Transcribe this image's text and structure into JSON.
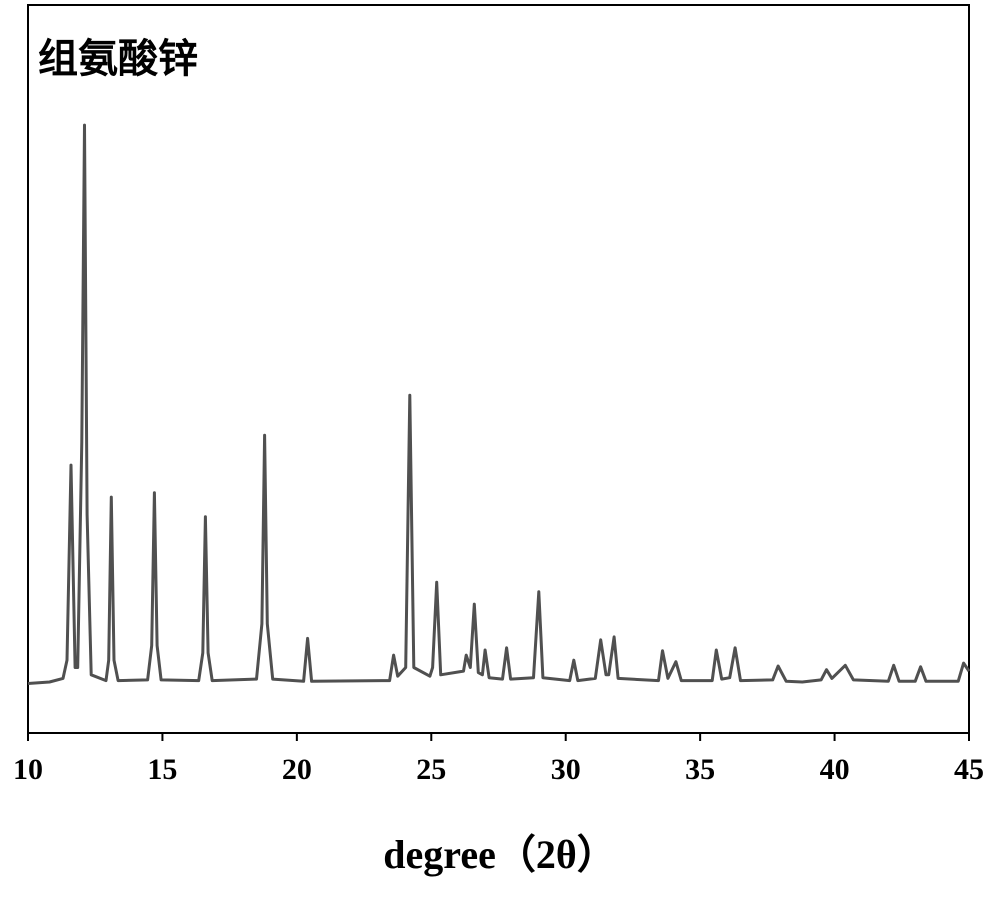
{
  "chart_data": {
    "type": "line",
    "title": "组氨酸锌",
    "xlabel": "degree（2θ）",
    "xlim": [
      10,
      45
    ],
    "xticks": [
      10,
      15,
      20,
      25,
      30,
      35,
      40,
      45
    ],
    "ylim": [
      0,
      100
    ],
    "series": [
      {
        "color": "#505050",
        "x": [
          10.0,
          10.8,
          11.3,
          11.45,
          11.6,
          11.75,
          11.85,
          12.0,
          12.1,
          12.2,
          12.35,
          12.9,
          13.0,
          13.1,
          13.2,
          13.35,
          14.45,
          14.6,
          14.7,
          14.8,
          14.95,
          16.35,
          16.5,
          16.6,
          16.7,
          16.85,
          18.5,
          18.7,
          18.8,
          18.9,
          19.1,
          20.25,
          20.4,
          20.55,
          23.45,
          23.6,
          23.75,
          24.05,
          24.2,
          24.35,
          24.95,
          25.05,
          25.2,
          25.35,
          26.2,
          26.3,
          26.45,
          26.6,
          26.75,
          26.9,
          27.0,
          27.15,
          27.65,
          27.8,
          27.95,
          28.8,
          29.0,
          29.15,
          30.15,
          30.3,
          30.45,
          31.1,
          31.3,
          31.5,
          31.6,
          31.8,
          31.95,
          33.45,
          33.6,
          33.8,
          34.1,
          34.3,
          35.45,
          35.6,
          35.8,
          36.1,
          36.3,
          36.5,
          37.7,
          37.9,
          38.2,
          38.8,
          39.5,
          39.7,
          39.9,
          40.4,
          40.7,
          42.0,
          42.2,
          42.4,
          43.0,
          43.2,
          43.4,
          44.6,
          44.8,
          45.0
        ],
        "values": [
          6.8,
          7.0,
          7.5,
          10,
          36.8,
          9,
          9,
          40,
          83.5,
          30,
          8,
          7.2,
          10,
          32.4,
          10,
          7.2,
          7.3,
          12,
          33.0,
          12,
          7.3,
          7.2,
          11,
          29.7,
          11,
          7.2,
          7.4,
          15,
          40.9,
          15,
          7.4,
          7.1,
          13.0,
          7.1,
          7.2,
          10.7,
          7.8,
          9,
          46.4,
          9,
          7.8,
          9,
          20.7,
          8.0,
          8.5,
          10.7,
          9,
          17.7,
          8.3,
          8.0,
          11.4,
          7.6,
          7.4,
          11.7,
          7.4,
          7.6,
          19.4,
          7.6,
          7.2,
          10.0,
          7.2,
          7.5,
          12.8,
          8.0,
          8.0,
          13.2,
          7.5,
          7.2,
          11.3,
          7.5,
          9.8,
          7.2,
          7.2,
          11.4,
          7.4,
          7.6,
          11.7,
          7.2,
          7.3,
          9.2,
          7.1,
          7.0,
          7.3,
          8.7,
          7.5,
          9.3,
          7.3,
          7.1,
          9.3,
          7.1,
          7.1,
          9.1,
          7.1,
          7.1,
          9.6,
          8.5
        ]
      }
    ]
  }
}
